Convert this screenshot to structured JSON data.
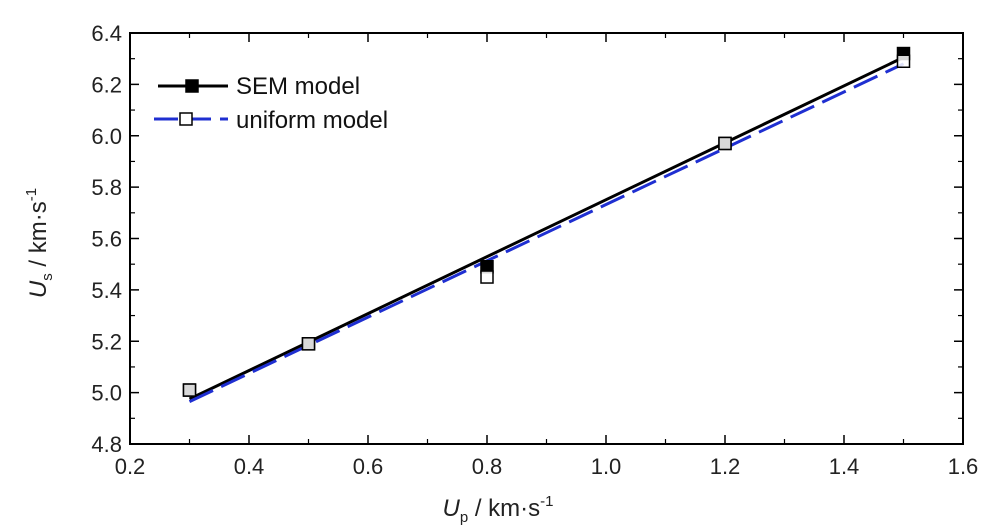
{
  "chart_data": {
    "type": "line",
    "xlabel": {
      "symbol": "U",
      "subscript": "p",
      "unit": " / km·s",
      "exponent": "-1"
    },
    "ylabel": {
      "symbol": "U",
      "subscript": "s",
      "unit": " / km·s",
      "exponent": "-1"
    },
    "xlim": [
      0.2,
      1.6
    ],
    "ylim": [
      4.8,
      6.4
    ],
    "xticks": [
      "0.2",
      "0.4",
      "0.6",
      "0.8",
      "1.0",
      "1.2",
      "1.4",
      "1.6"
    ],
    "yticks": [
      "4.8",
      "5.0",
      "5.2",
      "5.4",
      "5.6",
      "5.8",
      "6.0",
      "6.2",
      "6.4"
    ],
    "grid": false,
    "legend": "top-left",
    "series": [
      {
        "name": "SEM model",
        "color": "#000000",
        "marker": "filled-square",
        "line_style": "solid",
        "markers": [
          {
            "x": 0.3,
            "y": 5.01
          },
          {
            "x": 0.5,
            "y": 5.19
          },
          {
            "x": 0.8,
            "y": 5.49
          },
          {
            "x": 1.2,
            "y": 5.97
          },
          {
            "x": 1.5,
            "y": 6.32
          }
        ],
        "fit": [
          {
            "x": 0.3,
            "y": 4.975
          },
          {
            "x": 1.5,
            "y": 6.305
          }
        ]
      },
      {
        "name": "uniform model",
        "color": "#1f2fd1",
        "marker": "open-square",
        "line_style": "dashed",
        "markers": [
          {
            "x": 0.3,
            "y": 5.01
          },
          {
            "x": 0.5,
            "y": 5.19
          },
          {
            "x": 0.8,
            "y": 5.45
          },
          {
            "x": 1.2,
            "y": 5.97
          },
          {
            "x": 1.5,
            "y": 6.29
          }
        ],
        "fit": [
          {
            "x": 0.3,
            "y": 4.965
          },
          {
            "x": 1.5,
            "y": 6.28
          }
        ]
      }
    ]
  }
}
